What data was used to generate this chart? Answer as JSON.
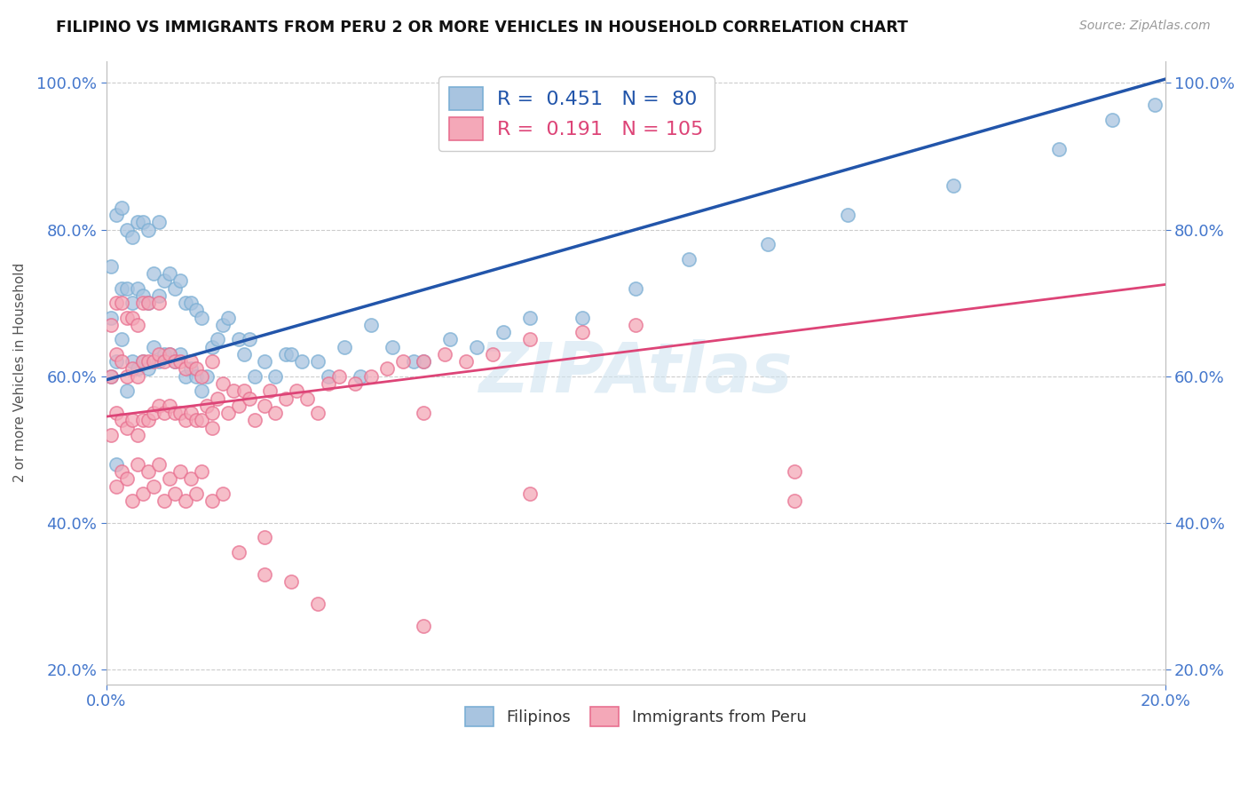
{
  "title": "FILIPINO VS IMMIGRANTS FROM PERU 2 OR MORE VEHICLES IN HOUSEHOLD CORRELATION CHART",
  "source_text": "Source: ZipAtlas.com",
  "ylabel_text": "2 or more Vehicles in Household",
  "x_min": 0.0,
  "x_max": 0.2,
  "y_min": 0.18,
  "y_max": 1.03,
  "blue_R": 0.451,
  "blue_N": 80,
  "pink_R": 0.191,
  "pink_N": 105,
  "blue_color": "#a8c4e0",
  "pink_color": "#f4a8b8",
  "blue_edge_color": "#7bafd4",
  "pink_edge_color": "#e87090",
  "blue_line_color": "#2255aa",
  "pink_line_color": "#dd4477",
  "legend_label_blue": "Filipinos",
  "legend_label_pink": "Immigrants from Peru",
  "blue_line_y0": 0.595,
  "blue_line_y1": 1.005,
  "pink_line_y0": 0.545,
  "pink_line_y1": 0.725,
  "blue_scatter_x": [
    0.001,
    0.001,
    0.001,
    0.002,
    0.002,
    0.003,
    0.003,
    0.003,
    0.004,
    0.004,
    0.004,
    0.005,
    0.005,
    0.005,
    0.006,
    0.006,
    0.006,
    0.007,
    0.007,
    0.007,
    0.008,
    0.008,
    0.008,
    0.009,
    0.009,
    0.01,
    0.01,
    0.01,
    0.011,
    0.011,
    0.012,
    0.012,
    0.013,
    0.013,
    0.014,
    0.014,
    0.015,
    0.015,
    0.016,
    0.016,
    0.017,
    0.017,
    0.018,
    0.018,
    0.019,
    0.02,
    0.021,
    0.022,
    0.023,
    0.025,
    0.026,
    0.027,
    0.028,
    0.03,
    0.032,
    0.034,
    0.035,
    0.037,
    0.04,
    0.042,
    0.045,
    0.048,
    0.05,
    0.054,
    0.058,
    0.06,
    0.065,
    0.07,
    0.075,
    0.08,
    0.09,
    0.1,
    0.11,
    0.125,
    0.14,
    0.002,
    0.16,
    0.18,
    0.19,
    0.198
  ],
  "blue_scatter_y": [
    0.6,
    0.68,
    0.75,
    0.62,
    0.82,
    0.65,
    0.72,
    0.83,
    0.58,
    0.72,
    0.8,
    0.62,
    0.7,
    0.79,
    0.61,
    0.72,
    0.81,
    0.62,
    0.71,
    0.81,
    0.61,
    0.7,
    0.8,
    0.64,
    0.74,
    0.62,
    0.71,
    0.81,
    0.63,
    0.73,
    0.63,
    0.74,
    0.62,
    0.72,
    0.63,
    0.73,
    0.6,
    0.7,
    0.61,
    0.7,
    0.6,
    0.69,
    0.58,
    0.68,
    0.6,
    0.64,
    0.65,
    0.67,
    0.68,
    0.65,
    0.63,
    0.65,
    0.6,
    0.62,
    0.6,
    0.63,
    0.63,
    0.62,
    0.62,
    0.6,
    0.64,
    0.6,
    0.67,
    0.64,
    0.62,
    0.62,
    0.65,
    0.64,
    0.66,
    0.68,
    0.68,
    0.72,
    0.76,
    0.78,
    0.82,
    0.48,
    0.86,
    0.91,
    0.95,
    0.97
  ],
  "pink_scatter_x": [
    0.001,
    0.001,
    0.001,
    0.002,
    0.002,
    0.002,
    0.003,
    0.003,
    0.003,
    0.004,
    0.004,
    0.004,
    0.005,
    0.005,
    0.005,
    0.006,
    0.006,
    0.006,
    0.007,
    0.007,
    0.007,
    0.008,
    0.008,
    0.008,
    0.009,
    0.009,
    0.01,
    0.01,
    0.01,
    0.011,
    0.011,
    0.012,
    0.012,
    0.013,
    0.013,
    0.014,
    0.014,
    0.015,
    0.015,
    0.016,
    0.016,
    0.017,
    0.017,
    0.018,
    0.018,
    0.019,
    0.02,
    0.02,
    0.021,
    0.022,
    0.023,
    0.024,
    0.025,
    0.026,
    0.027,
    0.028,
    0.03,
    0.031,
    0.032,
    0.034,
    0.036,
    0.038,
    0.04,
    0.042,
    0.044,
    0.047,
    0.05,
    0.053,
    0.056,
    0.06,
    0.064,
    0.068,
    0.073,
    0.08,
    0.09,
    0.1,
    0.002,
    0.003,
    0.004,
    0.005,
    0.006,
    0.007,
    0.008,
    0.009,
    0.01,
    0.011,
    0.012,
    0.013,
    0.014,
    0.015,
    0.016,
    0.017,
    0.018,
    0.02,
    0.022,
    0.025,
    0.03,
    0.035,
    0.04,
    0.06,
    0.08,
    0.02,
    0.03,
    0.06,
    0.13,
    0.13
  ],
  "pink_scatter_y": [
    0.52,
    0.6,
    0.67,
    0.55,
    0.63,
    0.7,
    0.54,
    0.62,
    0.7,
    0.53,
    0.6,
    0.68,
    0.54,
    0.61,
    0.68,
    0.52,
    0.6,
    0.67,
    0.54,
    0.62,
    0.7,
    0.54,
    0.62,
    0.7,
    0.55,
    0.62,
    0.56,
    0.63,
    0.7,
    0.55,
    0.62,
    0.56,
    0.63,
    0.55,
    0.62,
    0.55,
    0.62,
    0.54,
    0.61,
    0.55,
    0.62,
    0.54,
    0.61,
    0.54,
    0.6,
    0.56,
    0.55,
    0.62,
    0.57,
    0.59,
    0.55,
    0.58,
    0.56,
    0.58,
    0.57,
    0.54,
    0.56,
    0.58,
    0.55,
    0.57,
    0.58,
    0.57,
    0.55,
    0.59,
    0.6,
    0.59,
    0.6,
    0.61,
    0.62,
    0.62,
    0.63,
    0.62,
    0.63,
    0.65,
    0.66,
    0.67,
    0.45,
    0.47,
    0.46,
    0.43,
    0.48,
    0.44,
    0.47,
    0.45,
    0.48,
    0.43,
    0.46,
    0.44,
    0.47,
    0.43,
    0.46,
    0.44,
    0.47,
    0.43,
    0.44,
    0.36,
    0.33,
    0.32,
    0.29,
    0.26,
    0.44,
    0.53,
    0.38,
    0.55,
    0.47,
    0.43
  ]
}
